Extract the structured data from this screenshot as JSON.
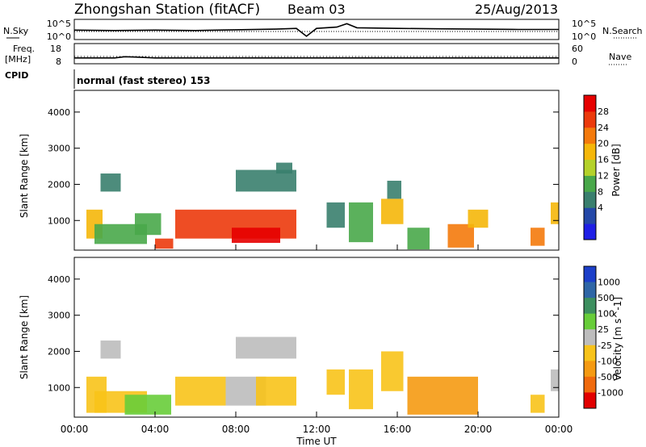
{
  "header": {
    "station": "Zhongshan Station (fitACF)",
    "beam": "Beam 03",
    "date": "25/Aug/2013"
  },
  "noise_panel": {
    "left_label": "N.Sky",
    "right_label": "N.Search",
    "y_ticks_left": [
      "10^5",
      "10^0"
    ],
    "y_ticks_right": [
      "10^5",
      "10^0"
    ]
  },
  "freq_panel": {
    "left_label_line1": "Freq.",
    "left_label_line2": "[MHz]",
    "right_label": "Nave",
    "y_ticks_left": [
      "18",
      "8"
    ],
    "y_ticks_right": [
      "60",
      "0"
    ]
  },
  "cpid": {
    "label": "CPID",
    "text": "normal (fast stereo) 153"
  },
  "power_panel": {
    "ylabel": "Slant Range [km]",
    "y_ticks": [
      "4000",
      "3000",
      "2000",
      "1000"
    ],
    "colorbar_label": "Power [dB]",
    "colorbar_ticks": [
      "28",
      "24",
      "20",
      "16",
      "12",
      "8",
      "4"
    ],
    "colors": [
      "#1f1fe6",
      "#2448a8",
      "#3a7f6e",
      "#49a84a",
      "#b4d22a",
      "#f5b70a",
      "#f47a0c",
      "#ec3a0c",
      "#e60000"
    ]
  },
  "velocity_panel": {
    "ylabel": "Slant Range [km]",
    "y_ticks": [
      "4000",
      "3000",
      "2000",
      "1000"
    ],
    "colorbar_label": "Velocity [m s^-1]",
    "colorbar_ticks": [
      "1000",
      "500",
      "100",
      "25",
      "-25",
      "-100",
      "-500",
      "-1000"
    ],
    "colors": [
      "#1c3fc9",
      "#2f66a6",
      "#3d8f5f",
      "#68cd3a",
      "#bdbdbd",
      "#f8c31a",
      "#f59a12",
      "#f06a0d",
      "#e20000"
    ]
  },
  "x_axis": {
    "label": "Time UT",
    "ticks": [
      "00:00",
      "04:00",
      "08:00",
      "12:00",
      "16:00",
      "20:00",
      "00:00"
    ]
  },
  "chart_data": [
    {
      "type": "line",
      "title": "N.Sky / N.Search",
      "x_hours": [
        0,
        2,
        4,
        6,
        8,
        10,
        11,
        11.5,
        12,
        13,
        13.5,
        14,
        16,
        18,
        20,
        22,
        24
      ],
      "series": [
        {
          "name": "N.Sky",
          "values_log10": [
            2.3,
            2.2,
            2.3,
            2.2,
            2.4,
            2.6,
            2.8,
            0.5,
            2.8,
            3.2,
            4.2,
            3.0,
            2.8,
            2.7,
            2.6,
            2.5,
            2.5
          ]
        },
        {
          "name": "N.Search",
          "values_log10": [
            1.9,
            1.9,
            1.9,
            1.9,
            1.9,
            1.9,
            1.9,
            1.9,
            1.9,
            1.9,
            1.9,
            1.9,
            1.9,
            1.9,
            1.9,
            1.9,
            1.9
          ]
        }
      ],
      "ylim_log10": [
        0,
        5
      ]
    },
    {
      "type": "line",
      "title": "Freq. / Nave",
      "x_hours": [
        0,
        2,
        2.5,
        3,
        4,
        8,
        11.5,
        12,
        16,
        20,
        24
      ],
      "series": [
        {
          "name": "Freq. [MHz]",
          "values": [
            10.5,
            10.5,
            11.2,
            11.0,
            10.5,
            10.5,
            10.5,
            10.5,
            10.5,
            10.5,
            10.5
          ]
        },
        {
          "name": "Nave",
          "values": [
            20,
            20,
            20,
            20,
            20,
            20,
            20,
            20,
            20,
            20,
            20
          ]
        }
      ],
      "ylim": [
        8,
        18
      ],
      "ylim_right": [
        0,
        60
      ]
    },
    {
      "type": "heatmap",
      "title": "Power [dB]",
      "xlabel": "Time UT",
      "ylabel": "Slant Range [km]",
      "xlim_hours": [
        0,
        24
      ],
      "ylim_km": [
        180,
        4600
      ],
      "colorbar_range": [
        0,
        32
      ],
      "echo_regions": [
        {
          "t0": 0.6,
          "t1": 1.4,
          "r0": 500,
          "r1": 1300,
          "level": 20
        },
        {
          "t0": 1.0,
          "t1": 3.6,
          "r0": 350,
          "r1": 900,
          "level": 14
        },
        {
          "t0": 1.3,
          "t1": 2.3,
          "r0": 1800,
          "r1": 2300,
          "level": 8
        },
        {
          "t0": 3.0,
          "t1": 4.3,
          "r0": 600,
          "r1": 1200,
          "level": 12
        },
        {
          "t0": 4.0,
          "t1": 4.9,
          "r0": 220,
          "r1": 500,
          "level": 26
        },
        {
          "t0": 5.0,
          "t1": 11.0,
          "r0": 500,
          "r1": 1300,
          "level": 28
        },
        {
          "t0": 7.8,
          "t1": 10.2,
          "r0": 380,
          "r1": 800,
          "level": 30
        },
        {
          "t0": 8.0,
          "t1": 11.0,
          "r0": 1800,
          "r1": 2400,
          "level": 10
        },
        {
          "t0": 10.0,
          "t1": 10.8,
          "r0": 2300,
          "r1": 2600,
          "level": 9
        },
        {
          "t0": 12.5,
          "t1": 13.4,
          "r0": 800,
          "r1": 1500,
          "level": 10
        },
        {
          "t0": 13.6,
          "t1": 14.8,
          "r0": 400,
          "r1": 1500,
          "level": 12
        },
        {
          "t0": 15.2,
          "t1": 16.3,
          "r0": 900,
          "r1": 1600,
          "level": 20
        },
        {
          "t0": 15.5,
          "t1": 16.2,
          "r0": 1600,
          "r1": 2100,
          "level": 10
        },
        {
          "t0": 16.5,
          "t1": 17.6,
          "r0": 200,
          "r1": 800,
          "level": 14
        },
        {
          "t0": 18.5,
          "t1": 19.8,
          "r0": 250,
          "r1": 900,
          "level": 22
        },
        {
          "t0": 19.5,
          "t1": 20.5,
          "r0": 800,
          "r1": 1300,
          "level": 18
        },
        {
          "t0": 22.6,
          "t1": 23.3,
          "r0": 300,
          "r1": 800,
          "level": 22
        },
        {
          "t0": 23.6,
          "t1": 24.0,
          "r0": 900,
          "r1": 1500,
          "level": 20
        }
      ]
    },
    {
      "type": "heatmap",
      "title": "Velocity [m s^-1]",
      "xlabel": "Time UT",
      "ylabel": "Slant Range [km]",
      "xlim_hours": [
        0,
        24
      ],
      "ylim_km": [
        180,
        4600
      ],
      "colorbar_range": [
        -1000,
        1000
      ],
      "echo_regions": [
        {
          "t0": 0.6,
          "t1": 1.6,
          "r0": 300,
          "r1": 1300,
          "level": -300
        },
        {
          "t0": 1.0,
          "t1": 3.6,
          "r0": 300,
          "r1": 900,
          "level": -200
        },
        {
          "t0": 1.3,
          "t1": 2.3,
          "r0": 1800,
          "r1": 2300,
          "level": 10
        },
        {
          "t0": 2.5,
          "t1": 4.8,
          "r0": 250,
          "r1": 800,
          "level": 150
        },
        {
          "t0": 5.0,
          "t1": 7.5,
          "r0": 500,
          "r1": 1300,
          "level": -150
        },
        {
          "t0": 7.5,
          "t1": 9.5,
          "r0": 500,
          "r1": 1300,
          "level": 60
        },
        {
          "t0": 9.0,
          "t1": 11.0,
          "r0": 500,
          "r1": 1300,
          "level": -200
        },
        {
          "t0": 8.0,
          "t1": 11.0,
          "r0": 1800,
          "r1": 2400,
          "level": 10
        },
        {
          "t0": 12.5,
          "t1": 13.4,
          "r0": 800,
          "r1": 1500,
          "level": -150
        },
        {
          "t0": 13.6,
          "t1": 14.8,
          "r0": 400,
          "r1": 1500,
          "level": -300
        },
        {
          "t0": 15.2,
          "t1": 16.3,
          "r0": 900,
          "r1": 2000,
          "level": -300
        },
        {
          "t0": 16.5,
          "t1": 20.0,
          "r0": 250,
          "r1": 1300,
          "level": -400
        },
        {
          "t0": 22.6,
          "t1": 23.3,
          "r0": 300,
          "r1": 800,
          "level": -300
        },
        {
          "t0": 23.6,
          "t1": 24.0,
          "r0": 900,
          "r1": 1500,
          "level": 80
        }
      ]
    }
  ]
}
